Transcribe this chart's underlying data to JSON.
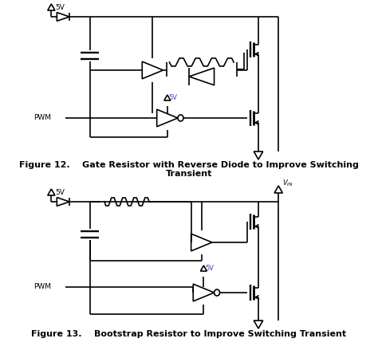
{
  "lw": 1.2,
  "bg": "#ffffff",
  "caption1_line1": "Figure 12.    Gate Resistor with Reverse Diode to Improve Switching",
  "caption1_line2": "Transient",
  "caption2": "Figure 13.    Bootstrap Resistor to Improve Switching Transient",
  "font_caption": 8.0,
  "font_label": 6.5
}
